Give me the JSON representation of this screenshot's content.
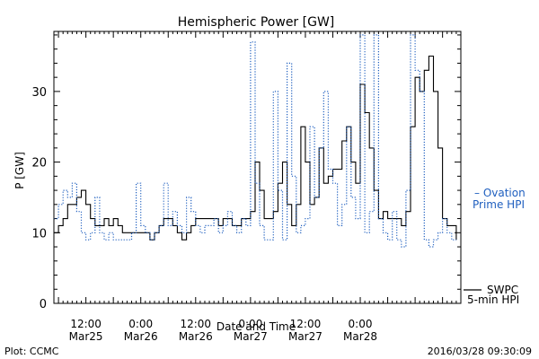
{
  "chart_data": {
    "type": "line",
    "title": "Hemispheric Power [GW]",
    "xlabel": "Date and Time",
    "ylabel": "P [GW]",
    "ylim": [
      0,
      38.5
    ],
    "xlim": [
      -1,
      88
    ],
    "yticks": [
      0,
      10,
      20,
      30
    ],
    "xtick_positions": [
      6,
      18,
      30,
      42,
      54,
      66
    ],
    "xticks": [
      {
        "time": "12:00",
        "date": "Mar25"
      },
      {
        "time": "0:00",
        "date": "Mar26"
      },
      {
        "time": "12:00",
        "date": "Mar26"
      },
      {
        "time": "0:00",
        "date": "Mar27"
      },
      {
        "time": "12:00",
        "date": "Mar27"
      },
      {
        "time": "0:00",
        "date": "Mar28"
      }
    ],
    "grid": false,
    "legend_position": "right",
    "series": [
      {
        "name": "SWPC",
        "style": "step",
        "color": "#000000",
        "x": [
          -1,
          0,
          1,
          2,
          3,
          4,
          5,
          6,
          7,
          8,
          9,
          10,
          11,
          12,
          13,
          14,
          15,
          16,
          17,
          18,
          19,
          20,
          21,
          22,
          23,
          24,
          25,
          26,
          27,
          28,
          29,
          30,
          31,
          32,
          33,
          34,
          35,
          36,
          37,
          38,
          39,
          40,
          41,
          42,
          43,
          44,
          45,
          46,
          47,
          48,
          49,
          50,
          51,
          52,
          53,
          54,
          55,
          56,
          57,
          58,
          59,
          60,
          61,
          62,
          63,
          64,
          65,
          66,
          67,
          68,
          69,
          70,
          71,
          72,
          73,
          74,
          75,
          76,
          77,
          78,
          79,
          80,
          81,
          82,
          83,
          84,
          85,
          86,
          87
        ],
        "values": [
          10,
          11,
          12,
          14,
          14,
          15,
          16,
          14,
          12,
          11,
          11,
          12,
          11,
          12,
          11,
          10,
          10,
          10,
          10,
          10,
          10,
          9,
          10,
          11,
          12,
          12,
          11,
          10,
          9,
          10,
          11,
          12,
          12,
          12,
          12,
          12,
          11,
          12,
          12,
          11,
          11,
          12,
          12,
          13,
          20,
          16,
          12,
          12,
          13,
          17,
          20,
          14,
          11,
          14,
          25,
          20,
          14,
          15,
          22,
          17,
          18,
          19,
          19,
          23,
          25,
          20,
          17,
          31,
          27,
          22,
          16,
          12,
          13,
          12,
          12,
          12,
          11,
          13,
          25,
          32,
          30,
          33,
          35,
          30,
          22,
          12,
          11,
          11,
          9
        ]
      },
      {
        "name": "Ovation Prime HPI",
        "style": "step-dotted",
        "color": "#1f5fbf",
        "x": [
          -1,
          0,
          1,
          2,
          3,
          4,
          5,
          6,
          7,
          8,
          9,
          10,
          11,
          12,
          13,
          14,
          15,
          16,
          17,
          18,
          19,
          20,
          21,
          22,
          23,
          24,
          25,
          26,
          27,
          28,
          29,
          30,
          31,
          32,
          33,
          34,
          35,
          36,
          37,
          38,
          39,
          40,
          41,
          42,
          43,
          44,
          45,
          46,
          47,
          48,
          49,
          50,
          51,
          52,
          53,
          54,
          55,
          56,
          57,
          58,
          59,
          60,
          61,
          62,
          63,
          64,
          65,
          66,
          67,
          68,
          69,
          70,
          71,
          72,
          73,
          74,
          75,
          76,
          77,
          78,
          79,
          80,
          81,
          82,
          83,
          84,
          85,
          86,
          87
        ],
        "values": [
          12,
          14,
          16,
          15,
          17,
          13,
          10,
          9,
          10,
          15,
          10,
          9,
          10,
          9,
          9,
          9,
          9,
          10,
          17,
          11,
          10,
          9,
          10,
          11,
          17,
          11,
          13,
          11,
          10,
          15,
          13,
          11,
          10,
          11,
          11,
          12,
          10,
          11,
          13,
          11,
          10,
          12,
          11,
          37,
          17,
          11,
          9,
          9,
          30,
          16,
          9,
          34,
          18,
          10,
          11,
          12,
          25,
          15,
          22,
          30,
          19,
          17,
          11,
          14,
          25,
          15,
          12,
          38,
          10,
          13,
          38,
          12,
          10,
          9,
          13,
          9,
          8,
          16,
          38,
          33,
          30,
          9,
          8,
          9,
          10,
          12,
          10,
          9,
          9
        ]
      }
    ],
    "legend": {
      "swpc": "SWPC",
      "hpi_line1": "5-min HPI",
      "ovation_line1": "– Ovation",
      "ovation_line2": "Prime HPI"
    }
  },
  "footer": {
    "left": "Plot: CCMC",
    "right": "2016/03/28 09:30:09"
  }
}
